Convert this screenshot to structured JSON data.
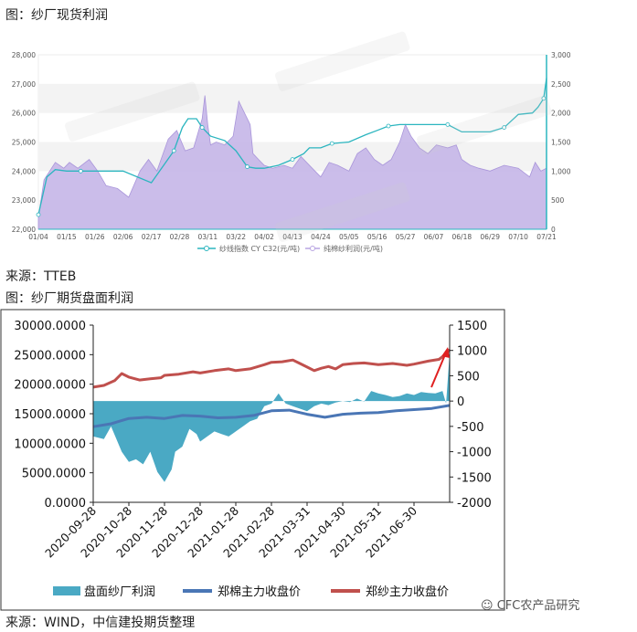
{
  "captions": {
    "fig1_title": "图：纱厂现货利润",
    "fig1_source": "来源：TTEB",
    "fig2_title": "图：纱厂期货盘面利润",
    "fig2_source": "来源：WIND，中信建投期货整理",
    "watermark": "CFC农产品研究"
  },
  "colors": {
    "c1_line": "#2bb5bf",
    "c1_area": "#c2b2e6",
    "c2_area": "#4aa9c4",
    "c2_cotton": "#4a76b5",
    "c2_yarn": "#c0504d"
  },
  "chart_data": [
    {
      "type": "line",
      "x_ticks": [
        "01/04",
        "01/15",
        "01/26",
        "02/06",
        "02/17",
        "02/28",
        "03/11",
        "03/22",
        "04/02",
        "04/13",
        "04/24",
        "05/05",
        "05/16",
        "05/27",
        "06/07",
        "06/18",
        "06/29",
        "07/10",
        "07/21"
      ],
      "left_axis": {
        "ylim": [
          22000,
          28000
        ],
        "ticks": [
          "22,000",
          "23,000",
          "24,000",
          "25,000",
          "26,000",
          "27,000",
          "28,000"
        ]
      },
      "right_axis": {
        "ylim": [
          0,
          3000
        ],
        "ticks": [
          "0",
          "500",
          "1,000",
          "1,500",
          "2,000",
          "2,500",
          "3,000"
        ]
      },
      "series": [
        {
          "name": "纱线指数 CY C32(元/吨)",
          "axis": "left",
          "x": [
            0,
            0.3,
            0.6,
            1.0,
            1.5,
            2.2,
            3.0,
            4.0,
            4.8,
            5.1,
            5.3,
            5.6,
            5.8,
            6.1,
            6.6,
            7.0,
            7.4,
            7.7,
            8.0,
            8.5,
            9.0,
            9.4,
            9.6,
            10.0,
            10.4,
            11.0,
            11.6,
            12.0,
            12.4,
            12.8,
            13.4,
            14.0,
            14.5,
            15.0,
            15.5,
            16.0,
            16.5,
            17.0,
            17.5,
            17.7,
            17.9,
            18.0
          ],
          "y": [
            22500,
            23800,
            24050,
            24000,
            24000,
            24000,
            24000,
            23600,
            24700,
            25500,
            25800,
            25800,
            25500,
            25200,
            25050,
            24700,
            24150,
            24100,
            24100,
            24200,
            24400,
            24600,
            24800,
            24800,
            24950,
            25000,
            25250,
            25400,
            25550,
            25600,
            25600,
            25600,
            25600,
            25350,
            25350,
            25350,
            25500,
            25950,
            26000,
            26200,
            26500,
            27200
          ]
        },
        {
          "name": "纯棉纱利润(元/吨)",
          "axis": "right",
          "x": [
            0,
            0.2,
            0.4,
            0.6,
            0.9,
            1.1,
            1.4,
            1.8,
            2.1,
            2.4,
            2.8,
            3.2,
            3.6,
            3.9,
            4.2,
            4.6,
            4.9,
            5.2,
            5.5,
            5.8,
            5.9,
            6.0,
            6.1,
            6.3,
            6.6,
            6.9,
            7.1,
            7.5,
            7.6,
            7.8,
            8.0,
            8.3,
            8.7,
            9.0,
            9.3,
            9.7,
            10.0,
            10.3,
            10.6,
            11.0,
            11.3,
            11.6,
            11.9,
            12.2,
            12.5,
            12.8,
            13.0,
            13.2,
            13.5,
            13.8,
            14.1,
            14.5,
            14.8,
            15.0,
            15.3,
            15.6,
            16.0,
            16.5,
            17.0,
            17.4,
            17.6,
            17.8,
            18.0
          ],
          "y": [
            200,
            850,
            1000,
            1150,
            1050,
            1150,
            1050,
            1200,
            1000,
            750,
            700,
            550,
            1000,
            1200,
            1000,
            1550,
            1700,
            1350,
            1400,
            1900,
            2300,
            1800,
            1450,
            1500,
            1450,
            1600,
            2200,
            1800,
            1300,
            1200,
            1100,
            1050,
            1100,
            1050,
            1250,
            1050,
            900,
            1150,
            1100,
            1000,
            1300,
            1400,
            1200,
            1100,
            1200,
            1500,
            1800,
            1600,
            1400,
            1300,
            1450,
            1400,
            1450,
            1200,
            1100,
            1050,
            1000,
            1100,
            1050,
            900,
            1150,
            1000,
            1050
          ]
        }
      ]
    },
    {
      "type": "line",
      "x_ticks": [
        "2020-09-28",
        "2020-10-28",
        "2020-11-28",
        "2020-12-28",
        "2021-01-28",
        "2021-02-28",
        "2021-03-31",
        "2021-04-30",
        "2021-05-31",
        "2021-06-30"
      ],
      "left_axis": {
        "ylim": [
          0,
          30000
        ],
        "ticks": [
          "0.0000",
          "5000.0000",
          "10000.0000",
          "15000.0000",
          "20000.0000",
          "25000.0000",
          "30000.0000"
        ]
      },
      "right_axis": {
        "ylim": [
          -2000,
          1500
        ],
        "ticks": [
          "-2000",
          "-1500",
          "-1000",
          "-500",
          "0",
          "500",
          "1000",
          "1500"
        ]
      },
      "series": [
        {
          "name": "盘面纱厂利润",
          "axis": "right",
          "type": "area",
          "x": [
            0,
            0.3,
            0.5,
            0.8,
            1.0,
            1.2,
            1.4,
            1.6,
            1.8,
            2.0,
            2.2,
            2.3,
            2.5,
            2.7,
            2.9,
            3.0,
            3.2,
            3.4,
            3.6,
            3.8,
            4.0,
            4.2,
            4.4,
            4.6,
            4.8,
            5.0,
            5.2,
            5.3,
            5.4,
            5.6,
            5.8,
            6.0,
            6.2,
            6.4,
            6.6,
            6.8,
            7.0,
            7.2,
            7.4,
            7.6,
            7.8,
            8.0,
            8.2,
            8.4,
            8.6,
            8.8,
            9.0,
            9.2,
            9.4,
            9.6,
            9.8,
            9.9,
            10.0
          ],
          "y": [
            -700,
            -750,
            -500,
            -1000,
            -1200,
            -1150,
            -1250,
            -1000,
            -1400,
            -1600,
            -1350,
            -1000,
            -900,
            -550,
            -650,
            -800,
            -700,
            -600,
            -650,
            -700,
            -600,
            -500,
            -400,
            -350,
            -100,
            -50,
            150,
            50,
            -50,
            -100,
            -150,
            -200,
            -100,
            -50,
            -80,
            -30,
            0,
            -20,
            50,
            -10,
            200,
            150,
            120,
            80,
            100,
            150,
            120,
            180,
            160,
            150,
            200,
            -50,
            950
          ]
        },
        {
          "name": "郑棉主力收盘价",
          "axis": "left",
          "x": [
            0,
            0.5,
            1.0,
            1.5,
            2.0,
            2.5,
            3.0,
            3.5,
            4.0,
            4.5,
            5.0,
            5.5,
            6.0,
            6.5,
            7.0,
            7.5,
            8.0,
            8.5,
            9.0,
            9.5,
            10.0
          ],
          "y": [
            12800,
            13300,
            14200,
            14400,
            14200,
            14700,
            14600,
            14300,
            14400,
            14700,
            15500,
            15600,
            14900,
            14400,
            14900,
            15100,
            15200,
            15500,
            15700,
            15900,
            16400
          ]
        },
        {
          "name": "郑纱主力收盘价",
          "axis": "left",
          "x": [
            0,
            0.3,
            0.6,
            0.8,
            1.0,
            1.3,
            1.6,
            1.9,
            2.0,
            2.4,
            2.8,
            3.0,
            3.4,
            3.8,
            4.0,
            4.4,
            4.8,
            5.0,
            5.3,
            5.6,
            5.8,
            6.0,
            6.2,
            6.4,
            6.6,
            6.8,
            7.0,
            7.3,
            7.6,
            8.0,
            8.4,
            8.8,
            9.0,
            9.4,
            9.7,
            9.9,
            10.0
          ],
          "y": [
            19500,
            19800,
            20600,
            21800,
            21200,
            20700,
            20900,
            21100,
            21500,
            21700,
            22100,
            21900,
            22300,
            22600,
            22300,
            22600,
            23300,
            23700,
            23800,
            24100,
            23500,
            22900,
            22300,
            22700,
            23000,
            22600,
            23300,
            23500,
            23600,
            23300,
            23500,
            23200,
            23400,
            23900,
            24200,
            25100,
            25900
          ]
        }
      ]
    }
  ]
}
